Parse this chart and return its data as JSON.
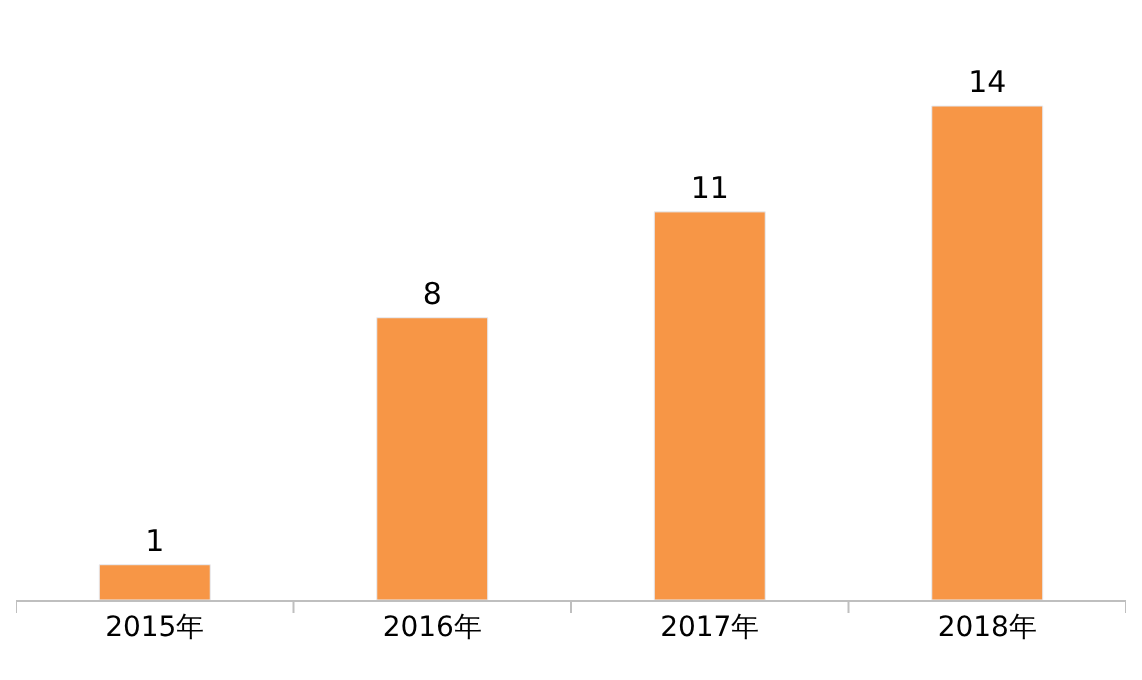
{
  "chart_data": {
    "type": "bar",
    "categories": [
      "2015年",
      "2016年",
      "2017年",
      "2018年"
    ],
    "values": [
      1,
      8,
      11,
      14
    ],
    "color": "#f79646",
    "data_labels": true,
    "legend": false
  }
}
